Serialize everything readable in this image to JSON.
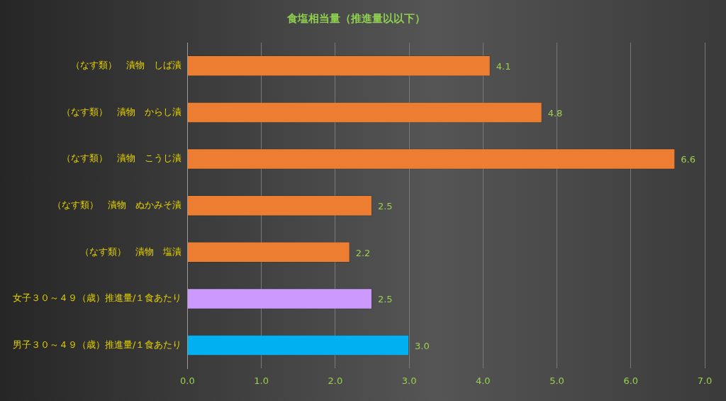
{
  "chart_data": {
    "type": "bar",
    "orientation": "horizontal",
    "title": "食塩相当量（推進量以以下）",
    "categories": [
      "（なす類）　漬物　しば漬",
      "（なす類）　漬物　からし漬",
      "（なす類）　漬物　こうじ漬",
      "（なす類）　漬物　ぬかみそ漬",
      "（なす類）　漬物　塩漬",
      "女子３０～４９（歳）推進量/１食あたり",
      "男子３０～４９（歳）推進量/１食あたり"
    ],
    "values": [
      4.1,
      4.8,
      6.6,
      2.5,
      2.2,
      2.5,
      3.0
    ],
    "colors": [
      "#ed7d31",
      "#ed7d31",
      "#ed7d31",
      "#ed7d31",
      "#ed7d31",
      "#cc99ff",
      "#00b0f0"
    ],
    "value_labels": [
      "4.1",
      "4.8",
      "6.6",
      "2.5",
      "2.2",
      "2.5",
      "3.0"
    ],
    "xlim": [
      0,
      7
    ],
    "xticks": [
      {
        "value": 0,
        "label": "0.0"
      },
      {
        "value": 1,
        "label": "1.0"
      },
      {
        "value": 2,
        "label": "2.0"
      },
      {
        "value": 3,
        "label": "3.0"
      },
      {
        "value": 4,
        "label": "4.0"
      },
      {
        "value": 5,
        "label": "5.0"
      },
      {
        "value": 6,
        "label": "6.0"
      },
      {
        "value": 7,
        "label": "7.0"
      }
    ],
    "grid": "x",
    "legend": false
  }
}
